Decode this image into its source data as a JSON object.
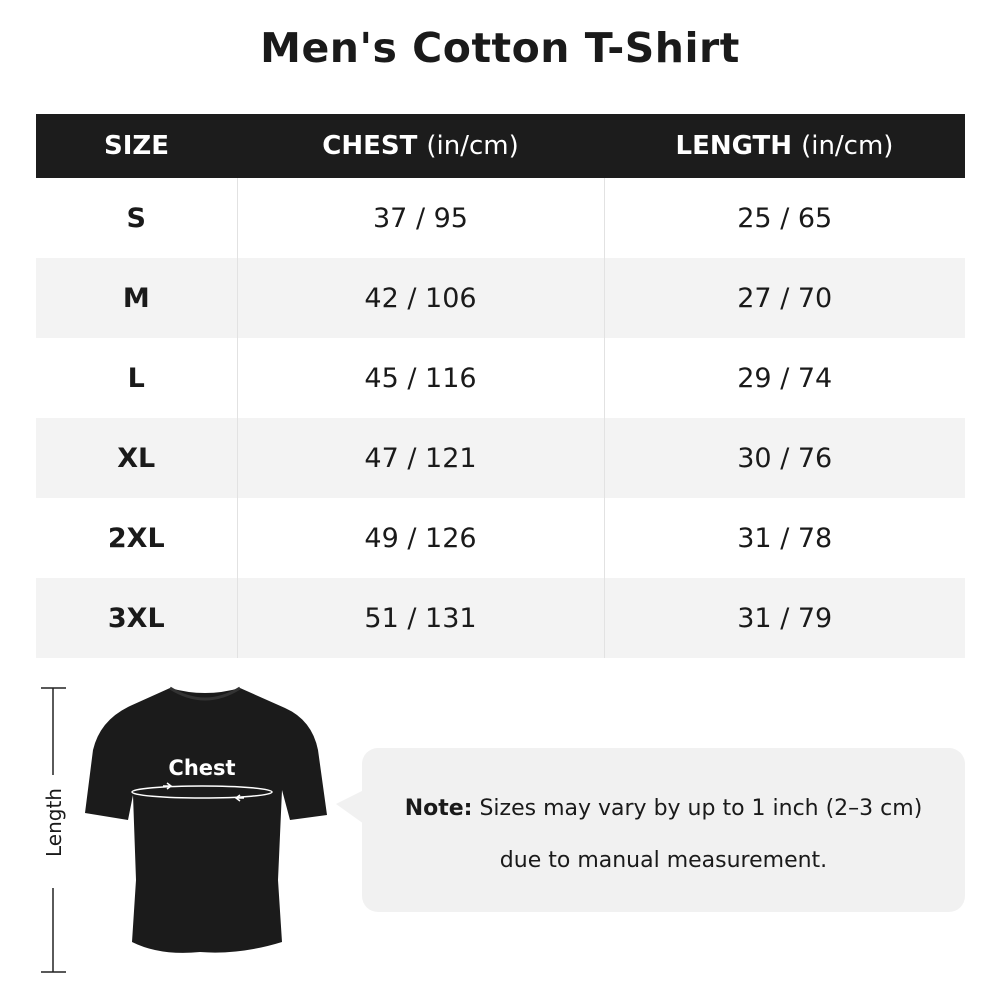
{
  "title": "Men's Cotton T-Shirt",
  "table": {
    "headers": [
      {
        "label": "SIZE",
        "unit": ""
      },
      {
        "label": "CHEST",
        "unit": "(in/cm)"
      },
      {
        "label": "LENGTH",
        "unit": "(in/cm)"
      }
    ],
    "rows": [
      {
        "size": "S",
        "chest": "37 / 95",
        "length": "25 / 65"
      },
      {
        "size": "M",
        "chest": "42 / 106",
        "length": "27 / 70"
      },
      {
        "size": "L",
        "chest": "45 / 116",
        "length": "29 / 74"
      },
      {
        "size": "XL",
        "chest": "47 / 121",
        "length": "30 / 76"
      },
      {
        "size": "2XL",
        "chest": "49 / 126",
        "length": "31 / 78"
      },
      {
        "size": "3XL",
        "chest": "51 / 131",
        "length": "31 / 79"
      }
    ]
  },
  "diagram": {
    "length_label": "Length",
    "chest_label": "Chest"
  },
  "note": {
    "prefix": "Note:",
    "line1": "Sizes may vary by up to 1 inch (2–3 cm)",
    "line2": "due to manual measurement."
  },
  "colors": {
    "header_bg": "#1c1c1c",
    "alt_row": "#f3f3f3",
    "note_bg": "#f1f1f1"
  }
}
